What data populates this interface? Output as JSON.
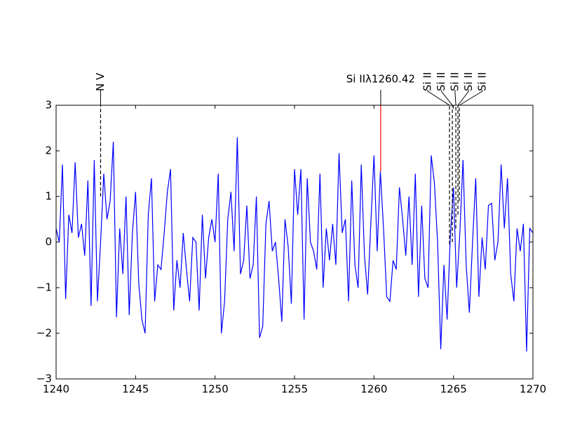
{
  "chart_data": {
    "type": "line",
    "x": [
      1240,
      1240.2,
      1240.4,
      1240.6,
      1240.8,
      1241,
      1241.2,
      1241.4,
      1241.6,
      1241.8,
      1242,
      1242.2,
      1242.4,
      1242.6,
      1242.8,
      1243,
      1243.2,
      1243.4,
      1243.6,
      1243.8,
      1244,
      1244.2,
      1244.4,
      1244.6,
      1244.8,
      1245,
      1245.2,
      1245.4,
      1245.6,
      1245.8,
      1246,
      1246.2,
      1246.4,
      1246.6,
      1246.8,
      1247,
      1247.2,
      1247.4,
      1247.6,
      1247.8,
      1248,
      1248.2,
      1248.4,
      1248.6,
      1248.8,
      1249,
      1249.2,
      1249.4,
      1249.6,
      1249.8,
      1250,
      1250.2,
      1250.4,
      1250.6,
      1250.8,
      1251,
      1251.2,
      1251.4,
      1251.6,
      1251.8,
      1252,
      1252.2,
      1252.4,
      1252.6,
      1252.8,
      1253,
      1253.2,
      1253.4,
      1253.6,
      1253.8,
      1254,
      1254.2,
      1254.4,
      1254.6,
      1254.8,
      1255,
      1255.2,
      1255.4,
      1255.6,
      1255.8,
      1256,
      1256.2,
      1256.4,
      1256.6,
      1256.8,
      1257,
      1257.2,
      1257.4,
      1257.6,
      1257.8,
      1258,
      1258.2,
      1258.4,
      1258.6,
      1258.8,
      1259,
      1259.2,
      1259.4,
      1259.6,
      1259.8,
      1260,
      1260.2,
      1260.4,
      1260.6,
      1260.8,
      1261,
      1261.2,
      1261.4,
      1261.6,
      1261.8,
      1262,
      1262.2,
      1262.4,
      1262.6,
      1262.8,
      1263,
      1263.2,
      1263.4,
      1263.6,
      1263.8,
      1264,
      1264.2,
      1264.4,
      1264.6,
      1264.8,
      1265,
      1265.2,
      1265.4,
      1265.6,
      1265.8,
      1266,
      1266.2,
      1266.4,
      1266.6,
      1266.8,
      1267,
      1267.2,
      1267.4,
      1267.6,
      1267.8,
      1268,
      1268.2,
      1268.4,
      1268.6,
      1268.8,
      1269,
      1269.2,
      1269.4,
      1269.6,
      1269.8,
      1270
    ],
    "series": [
      {
        "color": "#0000ff",
        "values": [
          0.3,
          0.0,
          1.7,
          -1.25,
          0.6,
          0.2,
          1.75,
          0.1,
          0.4,
          -0.3,
          1.35,
          -1.4,
          1.8,
          -1.3,
          0.0,
          1.5,
          0.5,
          0.9,
          2.2,
          -1.65,
          0.3,
          -0.7,
          1.0,
          -1.6,
          0.2,
          1.1,
          -0.9,
          -1.7,
          -2.0,
          0.6,
          1.4,
          -1.3,
          -0.5,
          -0.6,
          0.2,
          1.1,
          1.6,
          -1.5,
          -0.4,
          -1.0,
          0.2,
          -0.6,
          -1.3,
          0.1,
          0.0,
          -1.5,
          0.6,
          -0.8,
          0.1,
          0.5,
          0.0,
          1.5,
          -2.0,
          -1.3,
          0.5,
          1.1,
          -0.2,
          2.3,
          -0.7,
          -0.4,
          0.8,
          -0.8,
          -0.5,
          1.0,
          -2.1,
          -1.85,
          0.4,
          0.9,
          -0.2,
          0.0,
          -0.8,
          -1.75,
          0.5,
          -0.1,
          -1.35,
          1.6,
          0.6,
          1.6,
          -1.7,
          1.4,
          0.0,
          -0.2,
          -0.6,
          1.5,
          -1.0,
          0.3,
          -0.4,
          0.4,
          -0.5,
          1.95,
          0.2,
          0.5,
          -1.3,
          1.35,
          -0.5,
          -1.0,
          1.7,
          -0.3,
          -1.15,
          0.4,
          1.9,
          -0.2,
          1.55,
          0.3,
          -1.2,
          -1.3,
          -0.4,
          -0.6,
          1.2,
          0.5,
          -0.3,
          1.0,
          -0.5,
          1.5,
          -1.2,
          0.8,
          -0.8,
          -1.0,
          1.9,
          1.3,
          0.0,
          -2.35,
          -0.5,
          -1.7,
          0.1,
          1.2,
          -1.0,
          0.2,
          1.8,
          -0.5,
          -1.55,
          0.0,
          1.4,
          -1.2,
          0.1,
          -0.6,
          0.8,
          0.85,
          -0.4,
          0.0,
          1.7,
          0.3,
          1.4,
          -0.7,
          -1.3,
          0.3,
          -0.2,
          0.4,
          -2.4,
          0.3,
          0.2
        ]
      }
    ],
    "xlim": [
      1240,
      1270
    ],
    "ylim": [
      -3,
      3
    ],
    "xticks": [
      1240,
      1245,
      1250,
      1255,
      1260,
      1265,
      1270
    ],
    "yticks": [
      {
        "value": -3,
        "label": "−3"
      },
      {
        "value": -2,
        "label": "−2"
      },
      {
        "value": -1,
        "label": "−1"
      },
      0,
      1,
      2,
      3
    ],
    "annotations": [
      {
        "label": "N V",
        "x": 1242.8,
        "ymin": 1.0,
        "style": "dashed",
        "color": "#000000",
        "rotation": 90
      },
      {
        "label": "Si IIλ1260.42",
        "x": 1260.42,
        "ymin": 1.55,
        "style": "solid",
        "color": "#ff0000",
        "rotation": 0
      },
      {
        "label": "Si II",
        "x": 1264.75,
        "ymin": -0.05,
        "style": "dashed",
        "color": "#000000",
        "rotation": 90
      },
      {
        "label": "Si II",
        "x": 1264.93,
        "ymin": 0.0,
        "style": "dashed",
        "color": "#000000",
        "rotation": 90
      },
      {
        "label": "Si II",
        "x": 1265.15,
        "ymin": 0.3,
        "style": "dashed",
        "color": "#000000",
        "rotation": 90
      },
      {
        "label": "Si II",
        "x": 1265.28,
        "ymin": 0.6,
        "style": "dashed",
        "color": "#000000",
        "rotation": 90
      },
      {
        "label": "Si II",
        "x": 1265.37,
        "ymin": 0.9,
        "style": "dashed",
        "color": "#000000",
        "rotation": 90
      }
    ]
  }
}
